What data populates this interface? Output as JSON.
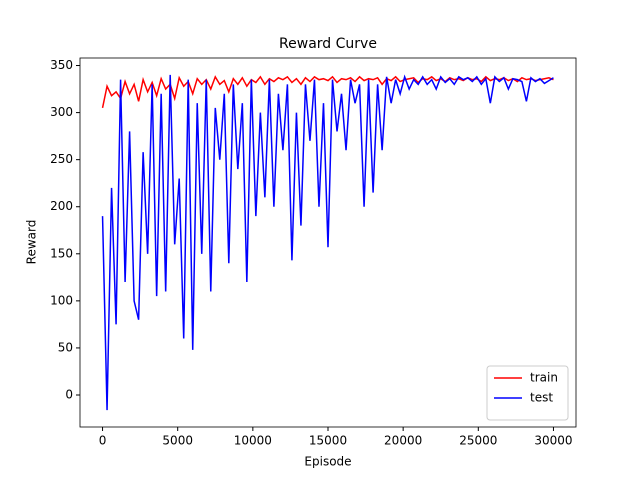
{
  "chart_data": {
    "type": "line",
    "title": "Reward Curve",
    "x_label": "Episode",
    "y_label": "Reward",
    "x": [
      0,
      300,
      600,
      900,
      1200,
      1500,
      1800,
      2100,
      2400,
      2700,
      3000,
      3300,
      3600,
      3900,
      4200,
      4500,
      4800,
      5100,
      5400,
      5700,
      6000,
      6300,
      6600,
      6900,
      7200,
      7500,
      7800,
      8100,
      8400,
      8700,
      9000,
      9300,
      9600,
      9900,
      10200,
      10500,
      10800,
      11100,
      11400,
      11700,
      12000,
      12300,
      12600,
      12900,
      13200,
      13500,
      13800,
      14100,
      14400,
      14700,
      15000,
      15300,
      15600,
      15900,
      16200,
      16500,
      16800,
      17100,
      17400,
      17700,
      18000,
      18300,
      18600,
      18900,
      19200,
      19500,
      19800,
      20100,
      20400,
      20700,
      21000,
      21300,
      21600,
      21900,
      22200,
      22500,
      22800,
      23100,
      23400,
      23700,
      24000,
      24300,
      24600,
      24900,
      25200,
      25500,
      25800,
      26100,
      26400,
      26700,
      27000,
      27300,
      27600,
      27900,
      28200,
      28500,
      28800,
      29100,
      29400,
      29700,
      30000
    ],
    "series": [
      {
        "name": "train",
        "color": "#ff0000",
        "values": [
          305,
          328,
          318,
          322,
          315,
          333,
          320,
          330,
          312,
          335,
          322,
          332,
          318,
          336,
          325,
          330,
          315,
          337,
          328,
          333,
          320,
          336,
          330,
          335,
          325,
          338,
          330,
          334,
          322,
          336,
          330,
          337,
          328,
          335,
          332,
          338,
          330,
          336,
          333,
          337,
          335,
          338,
          332,
          336,
          330,
          337,
          333,
          338,
          335,
          336,
          334,
          338,
          332,
          336,
          335,
          337,
          333,
          338,
          334,
          336,
          335,
          337,
          330,
          336,
          334,
          338,
          333,
          335,
          336,
          337,
          332,
          336,
          335,
          338,
          334,
          336,
          333,
          337,
          335,
          336,
          334,
          337,
          335,
          336,
          333,
          338,
          334,
          336,
          335,
          337,
          334,
          336,
          333,
          337,
          335,
          336,
          334,
          335,
          336,
          337,
          335
        ]
      },
      {
        "name": "test",
        "color": "#0000ff",
        "values": [
          190,
          -16,
          220,
          75,
          335,
          120,
          280,
          100,
          80,
          258,
          150,
          330,
          105,
          320,
          110,
          340,
          160,
          230,
          60,
          335,
          48,
          310,
          150,
          335,
          110,
          305,
          250,
          320,
          140,
          330,
          240,
          310,
          120,
          335,
          190,
          300,
          210,
          335,
          200,
          320,
          260,
          330,
          143,
          300,
          180,
          330,
          270,
          335,
          200,
          310,
          157,
          335,
          280,
          320,
          260,
          335,
          310,
          330,
          200,
          335,
          215,
          330,
          260,
          338,
          310,
          335,
          320,
          338,
          325,
          335,
          330,
          338,
          330,
          335,
          325,
          338,
          332,
          336,
          330,
          338,
          335,
          337,
          333,
          338,
          330,
          336,
          310,
          338,
          333,
          337,
          325,
          336,
          335,
          333,
          312,
          337,
          333,
          336,
          331,
          334,
          337
        ]
      }
    ],
    "xlim": [
      -1500,
      31500
    ],
    "ylim": [
      -34,
      358
    ],
    "xticks": [
      0,
      5000,
      10000,
      15000,
      20000,
      25000,
      30000
    ],
    "yticks": [
      0,
      50,
      100,
      150,
      200,
      250,
      300,
      350
    ],
    "legend": "lower right"
  }
}
